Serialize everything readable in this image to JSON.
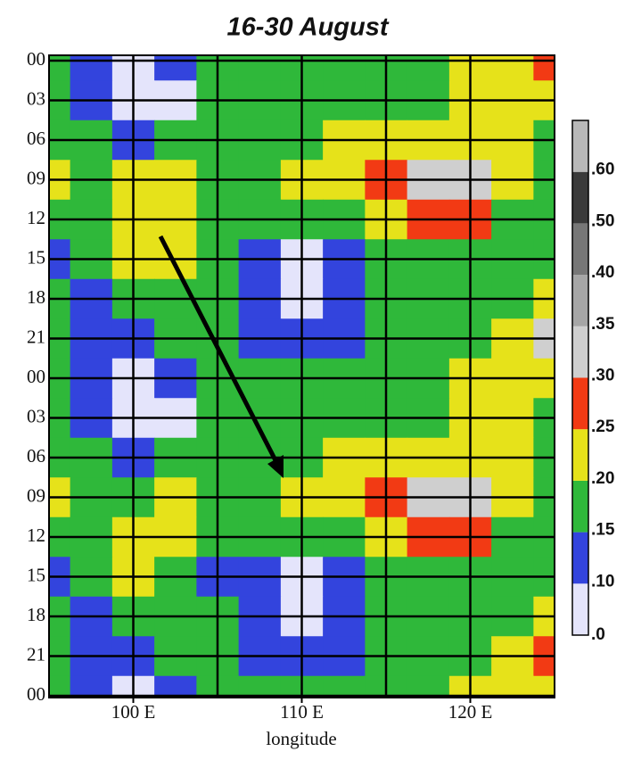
{
  "chart_data": {
    "type": "heatmap",
    "title": "16-30 August",
    "xlabel": "longitude",
    "categories": [
      "00",
      "03",
      "06",
      "09",
      "12",
      "15",
      "18",
      "21",
      "00",
      "03",
      "06",
      "09",
      "12",
      "15",
      "18",
      "21",
      "00"
    ],
    "x": [
      95,
      97.5,
      100,
      102.5,
      105,
      107.5,
      110,
      112.5,
      115,
      117.5,
      120,
      122.5,
      125
    ],
    "xlim": [
      95,
      125
    ],
    "xticks": [
      {
        "value": 100,
        "label": "100 E"
      },
      {
        "value": 110,
        "label": "110 E"
      },
      {
        "value": 120,
        "label": "120 E"
      }
    ],
    "xgrid": [
      100,
      105,
      110,
      115,
      120
    ],
    "values": [
      [
        0.18,
        0.12,
        0.02,
        0.12,
        0.18,
        0.17,
        0.16,
        0.17,
        0.18,
        0.18,
        0.2,
        0.2,
        0.26
      ],
      [
        0.17,
        0.1,
        0.02,
        0.08,
        0.17,
        0.16,
        0.16,
        0.17,
        0.18,
        0.19,
        0.2,
        0.2,
        0.22
      ],
      [
        0.19,
        0.16,
        0.12,
        0.17,
        0.19,
        0.19,
        0.19,
        0.2,
        0.21,
        0.22,
        0.22,
        0.2,
        0.18
      ],
      [
        0.2,
        0.18,
        0.2,
        0.2,
        0.19,
        0.19,
        0.2,
        0.21,
        0.29,
        0.34,
        0.33,
        0.2,
        0.18
      ],
      [
        0.18,
        0.17,
        0.24,
        0.22,
        0.18,
        0.16,
        0.17,
        0.18,
        0.22,
        0.27,
        0.26,
        0.19,
        0.17
      ],
      [
        0.13,
        0.16,
        0.2,
        0.2,
        0.15,
        0.1,
        0.09,
        0.13,
        0.16,
        0.18,
        0.18,
        0.16,
        0.15
      ],
      [
        0.17,
        0.12,
        0.18,
        0.18,
        0.15,
        0.11,
        0.08,
        0.12,
        0.15,
        0.17,
        0.18,
        0.18,
        0.22
      ],
      [
        0.19,
        0.14,
        0.12,
        0.16,
        0.16,
        0.13,
        0.12,
        0.14,
        0.17,
        0.18,
        0.19,
        0.2,
        0.3
      ],
      [
        0.18,
        0.12,
        0.02,
        0.1,
        0.18,
        0.17,
        0.16,
        0.17,
        0.18,
        0.18,
        0.2,
        0.2,
        0.2
      ],
      [
        0.17,
        0.1,
        0.02,
        0.08,
        0.17,
        0.16,
        0.16,
        0.17,
        0.18,
        0.19,
        0.2,
        0.2,
        0.19
      ],
      [
        0.19,
        0.16,
        0.14,
        0.17,
        0.19,
        0.19,
        0.19,
        0.2,
        0.21,
        0.23,
        0.23,
        0.2,
        0.18
      ],
      [
        0.2,
        0.18,
        0.19,
        0.2,
        0.19,
        0.19,
        0.2,
        0.22,
        0.29,
        0.34,
        0.33,
        0.2,
        0.18
      ],
      [
        0.18,
        0.17,
        0.22,
        0.22,
        0.18,
        0.16,
        0.17,
        0.18,
        0.22,
        0.27,
        0.26,
        0.19,
        0.17
      ],
      [
        0.12,
        0.16,
        0.21,
        0.19,
        0.14,
        0.1,
        0.09,
        0.13,
        0.16,
        0.18,
        0.18,
        0.15,
        0.16
      ],
      [
        0.17,
        0.12,
        0.18,
        0.18,
        0.15,
        0.11,
        0.08,
        0.12,
        0.15,
        0.17,
        0.18,
        0.18,
        0.2
      ],
      [
        0.19,
        0.13,
        0.1,
        0.16,
        0.16,
        0.13,
        0.12,
        0.14,
        0.17,
        0.18,
        0.19,
        0.2,
        0.28
      ],
      [
        0.19,
        0.13,
        0.04,
        0.12,
        0.18,
        0.17,
        0.17,
        0.18,
        0.18,
        0.19,
        0.2,
        0.2,
        0.21
      ]
    ],
    "colorbar": {
      "ticks": [
        {
          "value": 0,
          "label": ".0"
        },
        {
          "value": 0.1,
          "label": ".10"
        },
        {
          "value": 0.15,
          "label": ".15"
        },
        {
          "value": 0.2,
          "label": ".20"
        },
        {
          "value": 0.25,
          "label": ".25"
        },
        {
          "value": 0.3,
          "label": ".30"
        },
        {
          "value": 0.35,
          "label": ".35"
        },
        {
          "value": 0.4,
          "label": ".40"
        },
        {
          "value": 0.5,
          "label": ".50"
        },
        {
          "value": 0.6,
          "label": ".60"
        }
      ],
      "colors": [
        "#e4e4fb",
        "#3344dd",
        "#2fb83a",
        "#e6e21a",
        "#f23a14",
        "#cfcfcf",
        "#a6a6a6",
        "#777777",
        "#3a3a3a",
        "#b8b8b8"
      ]
    }
  }
}
